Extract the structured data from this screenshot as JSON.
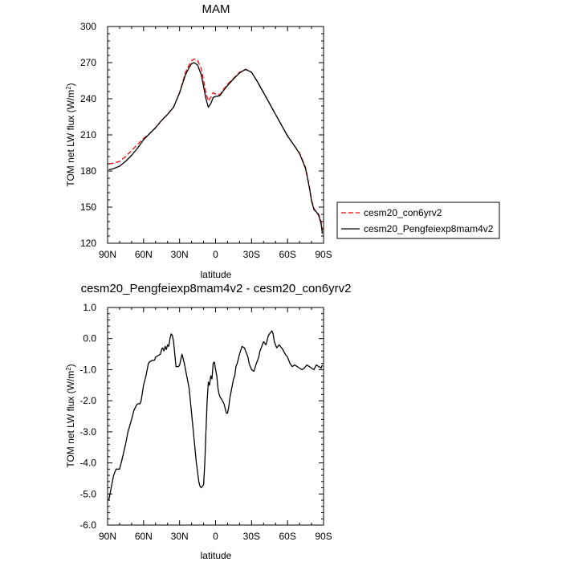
{
  "chart_data": [
    {
      "type": "line",
      "title": "MAM",
      "xlabel": "latitude",
      "ylabel": "TOM net LW flux (W/m",
      "ylabel_sup": "2",
      "ylabel_close": ")",
      "xlim": [
        90,
        -90
      ],
      "ylim": [
        120,
        300
      ],
      "xticks": [
        90,
        60,
        30,
        0,
        -30,
        -60,
        -90
      ],
      "xtick_labels": [
        "90N",
        "60N",
        "30N",
        "0",
        "30S",
        "60S",
        "90S"
      ],
      "yticks": [
        120,
        150,
        180,
        210,
        240,
        270,
        300
      ],
      "ytick_labels": [
        "120",
        "150",
        "180",
        "210",
        "240",
        "270",
        "300"
      ],
      "grid": false,
      "legend": "right, outside plot",
      "series": [
        {
          "name": "cesm20_con6yrv2",
          "color": "#ff0000",
          "dash": "dashed",
          "x": [
            89,
            85,
            80,
            75,
            70,
            65,
            60,
            55,
            50,
            45,
            40,
            35,
            30,
            25,
            22,
            20,
            18,
            15,
            12,
            10,
            8,
            6,
            4,
            2,
            0,
            -2,
            -4,
            -6,
            -10,
            -15,
            -20,
            -25,
            -30,
            -35,
            -40,
            -45,
            -50,
            -55,
            -60,
            -65,
            -70,
            -75,
            -78,
            -80,
            -82,
            -84,
            -86,
            -88,
            -89
          ],
          "y": [
            186,
            186.5,
            188,
            192,
            197,
            202,
            207,
            211,
            216,
            222,
            227,
            233,
            245,
            262,
            268,
            271.5,
            273,
            272,
            265,
            255,
            245,
            238,
            241,
            245,
            244,
            243,
            244,
            247,
            252,
            257,
            262,
            264.5,
            262,
            254,
            245,
            236,
            227,
            218,
            209,
            202,
            195,
            183,
            168,
            156,
            149,
            146,
            144,
            138,
            131
          ]
        },
        {
          "name": "cesm20_Pengfeiexp8mam4v2",
          "color": "#000000",
          "dash": "solid",
          "x": [
            89,
            85,
            80,
            75,
            70,
            65,
            60,
            55,
            50,
            45,
            40,
            35,
            30,
            25,
            22,
            20,
            18,
            15,
            12,
            10,
            8,
            6,
            4,
            2,
            0,
            -2,
            -4,
            -6,
            -10,
            -15,
            -20,
            -25,
            -30,
            -35,
            -40,
            -45,
            -50,
            -55,
            -60,
            -65,
            -70,
            -75,
            -78,
            -80,
            -82,
            -84,
            -86,
            -88,
            -89
          ],
          "y": [
            181,
            182,
            184,
            188,
            193,
            199,
            206,
            211,
            216,
            222,
            227,
            233,
            245,
            260,
            266,
            269,
            270,
            268,
            260,
            250,
            240,
            233,
            236,
            241,
            242,
            242,
            243,
            246,
            251,
            256.5,
            261.5,
            264.5,
            262,
            254,
            245,
            236,
            227,
            218,
            209,
            202,
            194.5,
            182,
            167,
            155,
            148,
            146,
            143,
            136,
            128
          ]
        }
      ]
    },
    {
      "type": "line",
      "title": "cesm20_Pengfeiexp8mam4v2 - cesm20_con6yrv2",
      "xlabel": "latitude",
      "ylabel": "TOM net LW flux (W/m",
      "ylabel_sup": "2",
      "ylabel_close": ")",
      "xlim": [
        90,
        -90
      ],
      "ylim": [
        -6,
        1
      ],
      "xticks": [
        90,
        60,
        30,
        0,
        -30,
        -60,
        -90
      ],
      "xtick_labels": [
        "90N",
        "60N",
        "30N",
        "0",
        "30S",
        "60S",
        "90S"
      ],
      "yticks": [
        1,
        0,
        -1,
        -2,
        -3,
        -4,
        -5,
        -6
      ],
      "ytick_labels": [
        "1.0",
        "0.0",
        "-1.0",
        "-2.0",
        "-3.0",
        "-4.0",
        "-5.0",
        "-6.0"
      ],
      "grid": false,
      "series": [
        {
          "color": "#000000",
          "dash": "solid",
          "x": [
            89,
            87,
            85,
            83,
            80,
            78,
            75,
            73,
            70,
            68,
            66,
            65,
            63,
            62,
            60,
            58,
            56,
            55,
            53,
            51,
            50,
            48,
            46,
            45,
            44,
            43,
            42,
            41,
            40,
            39,
            38,
            37,
            36,
            35,
            33,
            31,
            30,
            28,
            26,
            24,
            22,
            20,
            18,
            16,
            14,
            13,
            12,
            11,
            10,
            9,
            8,
            7,
            6,
            5,
            4,
            3,
            2,
            1,
            0,
            -1,
            -2,
            -3,
            -4,
            -5,
            -7,
            -9,
            -10,
            -11,
            -12,
            -13,
            -14,
            -15,
            -16,
            -17,
            -18,
            -20,
            -22,
            -24,
            -25,
            -26,
            -27,
            -28,
            -30,
            -32,
            -34,
            -36,
            -37,
            -38,
            -40,
            -42,
            -44,
            -46,
            -47,
            -48,
            -49,
            -50,
            -51,
            -52,
            -53,
            -54,
            -55,
            -56,
            -58,
            -60,
            -62,
            -64,
            -66,
            -68,
            -70,
            -72,
            -74,
            -76,
            -78,
            -80,
            -82,
            -84,
            -86,
            -88,
            -89
          ],
          "y": [
            -5.2,
            -4.8,
            -4.4,
            -4.2,
            -4.2,
            -3.9,
            -3.4,
            -3.0,
            -2.6,
            -2.3,
            -2.15,
            -2.1,
            -2.1,
            -2.0,
            -1.5,
            -1.2,
            -0.8,
            -0.75,
            -0.7,
            -0.7,
            -0.6,
            -0.55,
            -0.5,
            -0.35,
            -0.3,
            -0.4,
            -0.25,
            -0.35,
            -0.2,
            -0.25,
            0.0,
            0.15,
            0.1,
            -0.1,
            -0.9,
            -0.9,
            -0.85,
            -0.5,
            -0.8,
            -1.2,
            -1.6,
            -2.4,
            -3.2,
            -4.0,
            -4.6,
            -4.75,
            -4.8,
            -4.75,
            -4.7,
            -4.0,
            -3.0,
            -2.0,
            -1.4,
            -1.5,
            -1.2,
            -1.3,
            -0.8,
            -0.75,
            -1.0,
            -1.2,
            -1.6,
            -1.8,
            -1.9,
            -1.95,
            -2.1,
            -2.4,
            -2.4,
            -2.2,
            -1.9,
            -1.7,
            -1.5,
            -1.3,
            -1.2,
            -0.9,
            -0.8,
            -0.5,
            -0.25,
            -0.3,
            -0.4,
            -0.5,
            -0.6,
            -0.8,
            -1.0,
            -1.05,
            -0.8,
            -0.6,
            -0.4,
            -0.3,
            -0.1,
            -0.2,
            0.1,
            0.2,
            0.25,
            0.15,
            -0.1,
            -0.2,
            -0.3,
            -0.25,
            -0.2,
            -0.25,
            -0.3,
            -0.35,
            -0.5,
            -0.6,
            -0.8,
            -0.9,
            -0.85,
            -0.9,
            -0.95,
            -1.0,
            -0.95,
            -0.85,
            -0.9,
            -0.95,
            -1.0,
            -0.85,
            -0.9,
            -0.95,
            -0.85
          ]
        }
      ]
    }
  ]
}
